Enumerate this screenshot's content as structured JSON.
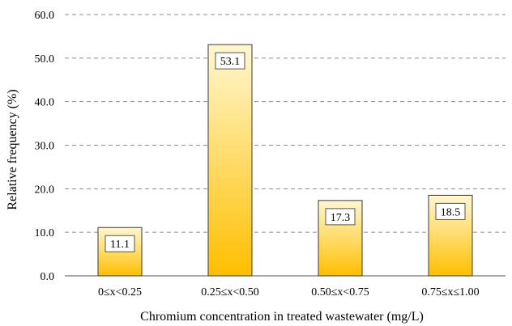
{
  "chart_data": {
    "type": "bar",
    "title": "",
    "xlabel": "Chromium concentration in treated wastewater (mg/L)",
    "ylabel": "Relative frequency (%)",
    "categories": [
      "0≤x<0.25",
      "0.25≤x<0.50",
      "0.50≤x<0.75",
      "0.75≤x≤1.00"
    ],
    "values": [
      11.1,
      53.1,
      17.3,
      18.5
    ],
    "data_labels": [
      "11.1",
      "53.1",
      "17.3",
      "18.5"
    ],
    "ylim": [
      0,
      60
    ],
    "yticks": [
      "0.0",
      "10.0",
      "20.0",
      "30.0",
      "40.0",
      "50.0",
      "60.0"
    ],
    "grid": "horizontal dashed",
    "legend": "none",
    "colors": {
      "bar_top": "#fff7d2",
      "bar_bottom": "#ffbf00",
      "bar_stroke": "#3a3a3a",
      "grid": "#8c8c8c"
    }
  }
}
